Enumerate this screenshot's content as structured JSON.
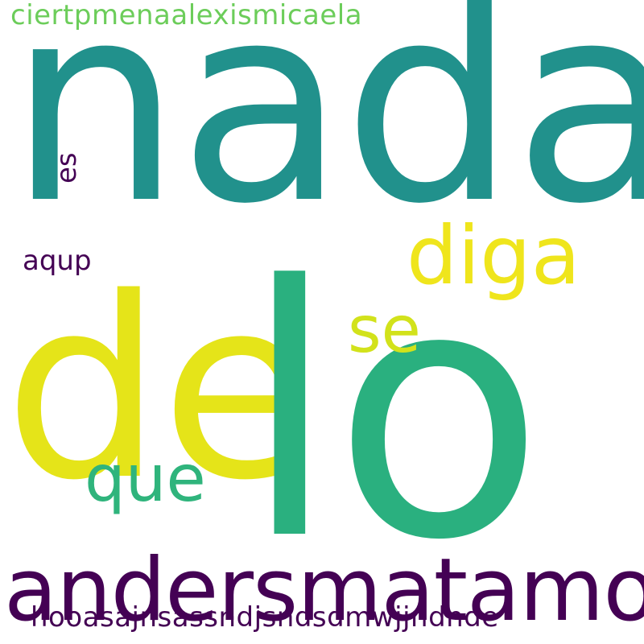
{
  "words": {
    "nada": {
      "text": "nada",
      "color": "#21918c"
    },
    "lo": {
      "text": "lo",
      "color": "#2ab07f"
    },
    "de": {
      "text": "de",
      "color": "#e5e419"
    },
    "andersmatamoros": {
      "text": "andersmatamoros",
      "color": "#440154"
    },
    "hooasajnsassndjsndsdmwjjndnde": {
      "text": "hooasajnsassndjsndsdmwjjndnde",
      "color": "#440154"
    },
    "ciertpmenaalexismicaela": {
      "text": "ciertpmenaalexismicaela",
      "color": "#6ccd5a"
    },
    "diga": {
      "text": "diga",
      "color": "#efe51c"
    },
    "se": {
      "text": "se",
      "color": "#d2e21b"
    },
    "que": {
      "text": "que",
      "color": "#2fb47c"
    },
    "aqup": {
      "text": "aqup",
      "color": "#440154"
    },
    "es": {
      "text": "es",
      "color": "#440154"
    }
  }
}
